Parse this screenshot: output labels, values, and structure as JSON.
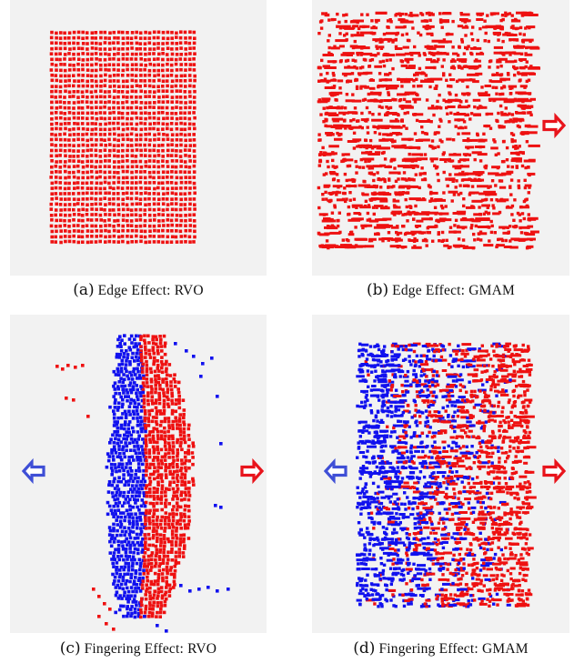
{
  "figure": {
    "subfigures": [
      {
        "id": "a",
        "label": "(a)",
        "caption": "Edge Effect: RVO"
      },
      {
        "id": "b",
        "label": "(b)",
        "caption": "Edge Effect: GMAM"
      },
      {
        "id": "c",
        "label": "(c)",
        "caption": "Fingering Effect: RVO"
      },
      {
        "id": "d",
        "label": "(d)",
        "caption": "Fingering Effect: GMAM"
      }
    ],
    "colors": {
      "panel_bg": "#f2f2f2",
      "red_agents": "#ee1111",
      "blue_agents": "#1111ee",
      "red_arrow": "#e8141c",
      "blue_arrow": "#3f4fd6"
    },
    "icons": {
      "red_arrow": "arrow-left-icon",
      "blue_arrow": "arrow-right-icon"
    }
  }
}
